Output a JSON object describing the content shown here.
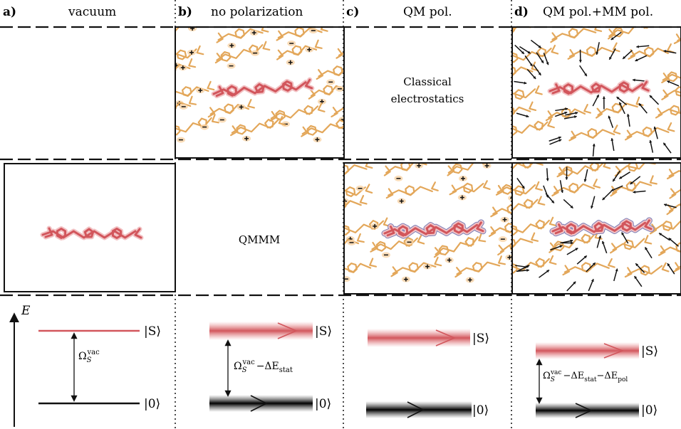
{
  "panels": [
    {
      "letter": "a)",
      "title": "vacuum"
    },
    {
      "letter": "b)",
      "title": "no polarization"
    },
    {
      "letter": "c)",
      "title": "QM pol."
    },
    {
      "letter": "d)",
      "title": "QM pol.+MM pol."
    }
  ],
  "center_labels": {
    "classical_line1": "Classical",
    "classical_line2": "electrostatics",
    "qmmm": "QMMM"
  },
  "energy": {
    "axis_label": "E",
    "excited_state": "|S⟩",
    "ground_state": "|0⟩",
    "gap_a_main": "Ω",
    "gap_a_sub": "S",
    "gap_a_sup": "vac",
    "gap_b_suffix": "−ΔE",
    "gap_b_sub": "stat",
    "gap_d_suffix2": "−ΔE",
    "gap_d_sub2": "pol"
  },
  "colors": {
    "mm_molecule": "#e3a75a",
    "qm_molecule": "#d2565c",
    "qm_halo": "#f2c2c4",
    "qm_pol": "#7b7fb8",
    "excited_line": "#d2565c",
    "ground_line": "#111111"
  },
  "icons": [
    "plus-charge-icon",
    "minus-charge-icon",
    "dipole-arrow-icon"
  ]
}
